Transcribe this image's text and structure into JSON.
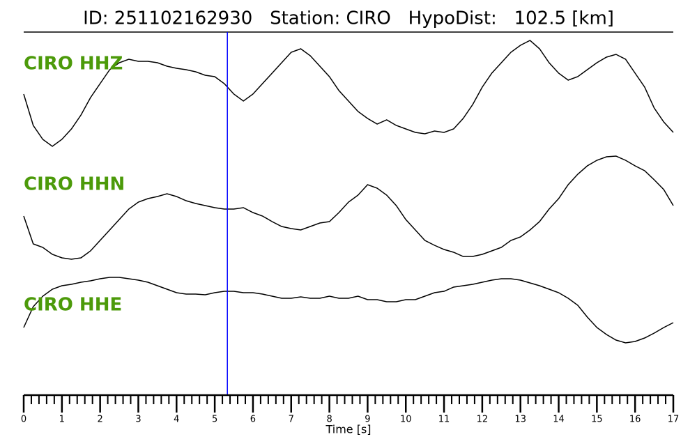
{
  "chart_data": {
    "type": "line",
    "title": "ID: 251102162930   Station: CIRO   HypoDist:   102.5 [km]",
    "xlabel": "Time [s]",
    "x": [
      0,
      0.25,
      0.5,
      0.75,
      1,
      1.25,
      1.5,
      1.75,
      2,
      2.25,
      2.5,
      2.75,
      3,
      3.25,
      3.5,
      3.75,
      4,
      4.25,
      4.5,
      4.75,
      5,
      5.25,
      5.5,
      5.75,
      6,
      6.25,
      6.5,
      6.75,
      7,
      7.25,
      7.5,
      7.75,
      8,
      8.25,
      8.5,
      8.75,
      9,
      9.25,
      9.5,
      9.75,
      10,
      10.25,
      10.5,
      10.75,
      11,
      11.25,
      11.5,
      11.75,
      12,
      12.25,
      12.5,
      12.75,
      13,
      13.25,
      13.5,
      13.75,
      14,
      14.25,
      14.5,
      14.75,
      15,
      15.25,
      15.5,
      15.75,
      16,
      16.25,
      16.5,
      16.75,
      17
    ],
    "series": [
      {
        "name": "CIRO HHZ",
        "color": "#000000",
        "values": [
          -5,
          -50,
          -70,
          -80,
          -70,
          -55,
          -35,
          -10,
          10,
          30,
          40,
          45,
          42,
          42,
          40,
          35,
          32,
          30,
          27,
          22,
          20,
          10,
          -5,
          -15,
          -5,
          10,
          25,
          40,
          55,
          60,
          50,
          35,
          20,
          0,
          -15,
          -30,
          -40,
          -48,
          -42,
          -50,
          -55,
          -60,
          -62,
          -58,
          -60,
          -55,
          -40,
          -20,
          5,
          25,
          40,
          55,
          65,
          72,
          60,
          40,
          25,
          15,
          20,
          30,
          40,
          48,
          52,
          45,
          25,
          5,
          -25,
          -45,
          -60
        ]
      },
      {
        "name": "CIRO HHN",
        "color": "#000000",
        "values": [
          -10,
          -50,
          -55,
          -65,
          -70,
          -72,
          -70,
          -60,
          -45,
          -30,
          -15,
          0,
          10,
          15,
          18,
          22,
          18,
          12,
          8,
          5,
          2,
          0,
          0,
          2,
          -5,
          -10,
          -18,
          -25,
          -28,
          -30,
          -25,
          -20,
          -18,
          -5,
          10,
          20,
          35,
          30,
          20,
          5,
          -15,
          -30,
          -45,
          -52,
          -58,
          -62,
          -68,
          -68,
          -65,
          -60,
          -55,
          -45,
          -40,
          -30,
          -18,
          0,
          15,
          35,
          50,
          62,
          70,
          75,
          76,
          70,
          62,
          55,
          42,
          28,
          5
        ]
      },
      {
        "name": "CIRO HHE",
        "color": "#000000",
        "values": [
          -30,
          0,
          15,
          25,
          30,
          32,
          35,
          37,
          40,
          42,
          42,
          40,
          38,
          35,
          30,
          25,
          20,
          18,
          18,
          17,
          20,
          22,
          22,
          20,
          20,
          18,
          15,
          12,
          12,
          14,
          12,
          12,
          15,
          12,
          12,
          15,
          10,
          10,
          7,
          7,
          10,
          10,
          15,
          20,
          22,
          28,
          30,
          32,
          35,
          38,
          40,
          40,
          38,
          34,
          30,
          25,
          20,
          12,
          2,
          -15,
          -30,
          -40,
          -48,
          -52,
          -50,
          -45,
          -38,
          -30,
          -23
        ]
      }
    ],
    "xlim": [
      0,
      17
    ],
    "xticks": [
      0,
      1,
      2,
      3,
      4,
      5,
      6,
      7,
      8,
      9,
      10,
      11,
      12,
      13,
      14,
      15,
      16,
      17
    ],
    "minor_xticks": [
      0.2,
      0.4,
      0.6,
      0.8,
      1.2,
      1.4,
      1.6,
      1.8,
      2.2,
      2.4,
      2.6,
      2.8,
      3.2,
      3.4,
      3.6,
      3.8,
      4.2,
      4.4,
      4.6,
      4.8,
      5.2,
      5.4,
      5.6,
      5.8,
      6.2,
      6.4,
      6.6,
      6.8,
      7.2,
      7.4,
      7.6,
      7.8,
      8.2,
      8.4,
      8.6,
      8.8,
      9.2,
      9.4,
      9.6,
      9.8,
      10.2,
      10.4,
      10.6,
      10.8,
      11.2,
      11.4,
      11.6,
      11.8,
      12.2,
      12.4,
      12.6,
      12.8,
      13.2,
      13.4,
      13.6,
      13.8,
      14.2,
      14.4,
      14.6,
      14.8,
      15.2,
      15.4,
      15.6,
      15.8,
      16.2,
      16.4,
      16.6,
      16.8
    ],
    "marker_x": 5.33,
    "marker_color": "#0000ff",
    "label_color": "#4c9a0a"
  }
}
